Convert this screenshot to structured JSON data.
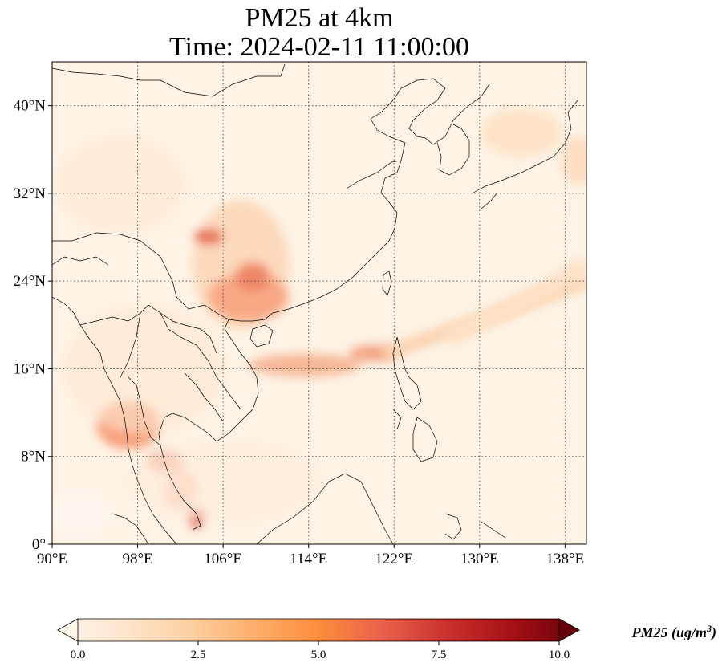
{
  "title": {
    "line1": "PM25 at 4km",
    "line2": "Time: 2024-02-11 11:00:00"
  },
  "map": {
    "lon_range": [
      90,
      140
    ],
    "lat_range": [
      0,
      44
    ],
    "lon_ticks": [
      {
        "value": 90,
        "label": "90°E"
      },
      {
        "value": 98,
        "label": "98°E"
      },
      {
        "value": 106,
        "label": "106°E"
      },
      {
        "value": 114,
        "label": "114°E"
      },
      {
        "value": 122,
        "label": "122°E"
      },
      {
        "value": 130,
        "label": "130°E"
      },
      {
        "value": 138,
        "label": "138°E"
      }
    ],
    "lat_ticks": [
      {
        "value": 0,
        "label": "0°"
      },
      {
        "value": 8,
        "label": "8°N"
      },
      {
        "value": 16,
        "label": "16°N"
      },
      {
        "value": 24,
        "label": "24°N"
      },
      {
        "value": 32,
        "label": "32°N"
      },
      {
        "value": 40,
        "label": "40°N"
      }
    ],
    "gridlines": "dotted"
  },
  "colorbar": {
    "min": 0.0,
    "max": 10.0,
    "ticks": [
      {
        "value": 0,
        "label": "0.0"
      },
      {
        "value": 2.5,
        "label": "2.5"
      },
      {
        "value": 5,
        "label": "5.0"
      },
      {
        "value": 7.5,
        "label": "7.5"
      },
      {
        "value": 10,
        "label": "10.0"
      }
    ],
    "label_prefix": "PM25 (ug/m",
    "label_sup": "3",
    "label_suffix": ")",
    "colormap": [
      "#fff5eb",
      "#fee6ce",
      "#fdd0a2",
      "#fdae6b",
      "#fd8d3c",
      "#f16913",
      "#d94801",
      "#a63603",
      "#7f2704"
    ]
  }
}
